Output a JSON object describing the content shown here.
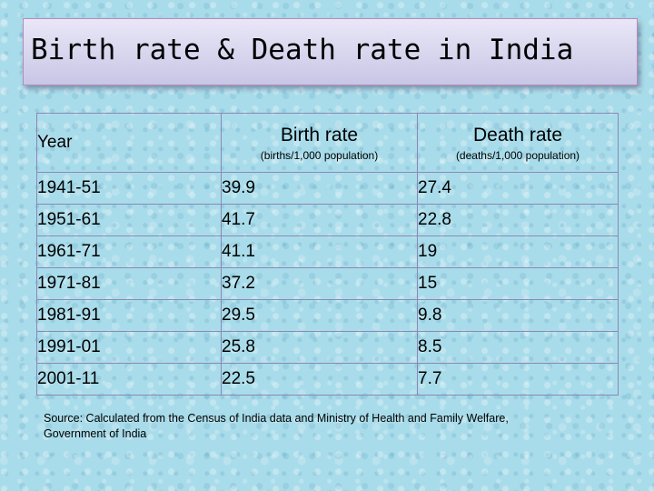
{
  "title": "Birth rate & Death rate in India",
  "table": {
    "headers": {
      "year": "Year",
      "birth_rate": "Birth rate",
      "birth_rate_unit": "(births/1,000 population)",
      "death_rate": "Death rate",
      "death_rate_unit": "(deaths/1,000 population)"
    },
    "rows": [
      {
        "year": "1941-51",
        "birth_rate": "39.9",
        "death_rate": "27.4"
      },
      {
        "year": "1951-61",
        "birth_rate": "41.7",
        "death_rate": "22.8"
      },
      {
        "year": "1961-71",
        "birth_rate": "41.1",
        "death_rate": "19"
      },
      {
        "year": "1971-81",
        "birth_rate": "37.2",
        "death_rate": "15"
      },
      {
        "year": "1981-91",
        "birth_rate": "29.5",
        "death_rate": "9.8"
      },
      {
        "year": "1991-01",
        "birth_rate": "25.8",
        "death_rate": "8.5"
      },
      {
        "year": "2001-11",
        "birth_rate": "22.5",
        "death_rate": "7.7"
      }
    ]
  },
  "source": "Source: Calculated from the Census of India data and Ministry of Health and Family Welfare,  Government of India"
}
